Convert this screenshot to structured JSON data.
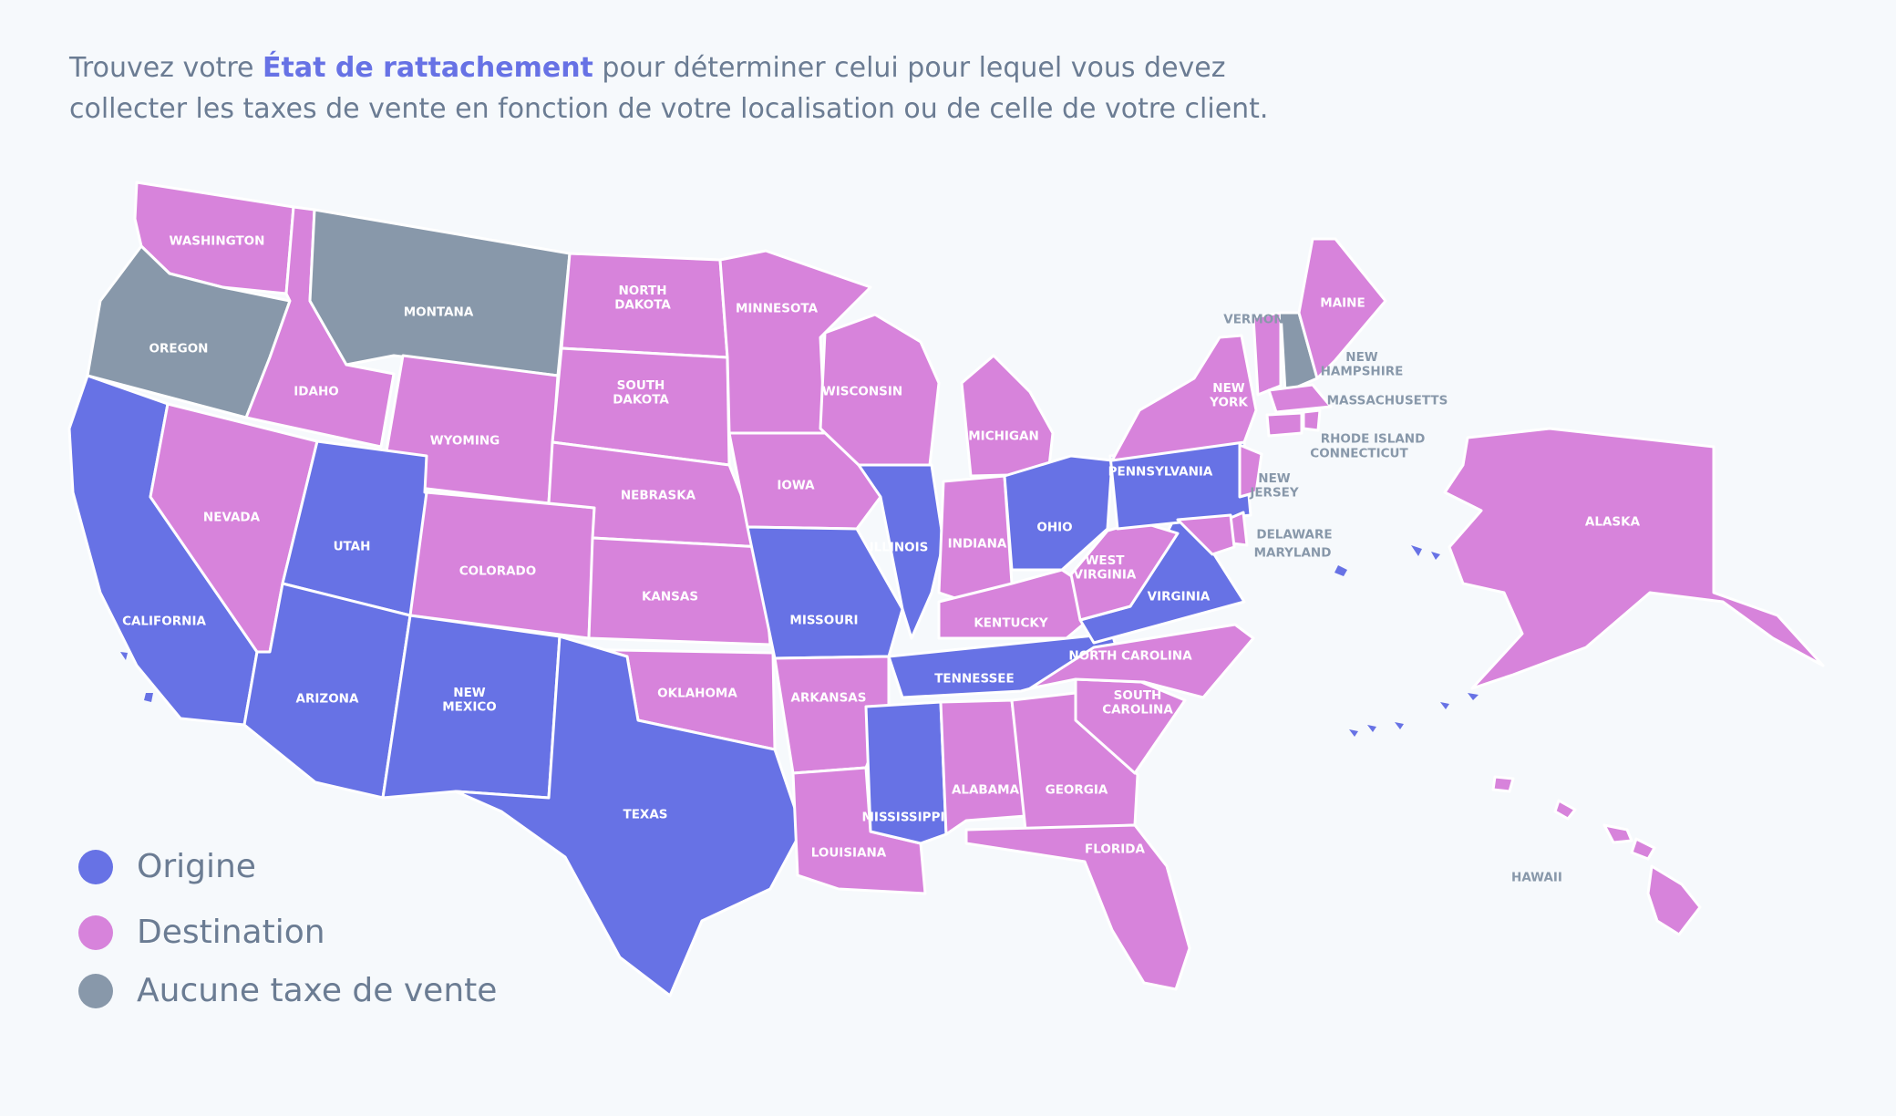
{
  "intro": {
    "before": "Trouvez votre ",
    "highlight": "État de rattachement",
    "after": " pour déterminer celui pour lequel vous devez collecter les taxes de vente en fonction de votre localisation ou de celle de votre client."
  },
  "colors": {
    "origin": "#6772e5",
    "destination": "#d783db",
    "none": "#8898aa",
    "border": "#ffffff",
    "label_on_state": "#ffffff",
    "label_outside": "#8898aa",
    "background": "#f6f9fc"
  },
  "legend": [
    {
      "key": "origin",
      "label": "Origine"
    },
    {
      "key": "destination",
      "label": "Destination"
    },
    {
      "key": "none",
      "label": "Aucune taxe de vente"
    }
  ],
  "states": [
    {
      "id": "washington",
      "label": "WASHINGTON",
      "category": "destination"
    },
    {
      "id": "oregon",
      "label": "OREGON",
      "category": "none"
    },
    {
      "id": "california",
      "label": "CALIFORNIA",
      "category": "origin"
    },
    {
      "id": "idaho",
      "label": "IDAHO",
      "category": "destination"
    },
    {
      "id": "nevada",
      "label": "NEVADA",
      "category": "destination"
    },
    {
      "id": "montana",
      "label": "MONTANA",
      "category": "none"
    },
    {
      "id": "wyoming",
      "label": "WYOMING",
      "category": "destination"
    },
    {
      "id": "utah",
      "label": "UTAH",
      "category": "origin"
    },
    {
      "id": "arizona",
      "label": "ARIZONA",
      "category": "origin"
    },
    {
      "id": "colorado",
      "label": "COLORADO",
      "category": "destination"
    },
    {
      "id": "new-mexico",
      "label": "NEW MEXICO",
      "category": "origin"
    },
    {
      "id": "north-dakota",
      "label": "NORTH DAKOTA",
      "category": "destination"
    },
    {
      "id": "south-dakota",
      "label": "SOUTH DAKOTA",
      "category": "destination"
    },
    {
      "id": "nebraska",
      "label": "NEBRASKA",
      "category": "destination"
    },
    {
      "id": "kansas",
      "label": "KANSAS",
      "category": "destination"
    },
    {
      "id": "oklahoma",
      "label": "OKLAHOMA",
      "category": "destination"
    },
    {
      "id": "texas",
      "label": "TEXAS",
      "category": "origin"
    },
    {
      "id": "minnesota",
      "label": "MINNESOTA",
      "category": "destination"
    },
    {
      "id": "iowa",
      "label": "IOWA",
      "category": "destination"
    },
    {
      "id": "missouri",
      "label": "MISSOURI",
      "category": "origin"
    },
    {
      "id": "arkansas",
      "label": "ARKANSAS",
      "category": "destination"
    },
    {
      "id": "louisiana",
      "label": "LOUISIANA",
      "category": "destination"
    },
    {
      "id": "wisconsin",
      "label": "WISCONSIN",
      "category": "destination"
    },
    {
      "id": "illinois",
      "label": "ILLINOIS",
      "category": "origin"
    },
    {
      "id": "michigan",
      "label": "MICHIGAN",
      "category": "destination"
    },
    {
      "id": "indiana",
      "label": "INDIANA",
      "category": "destination"
    },
    {
      "id": "ohio",
      "label": "OHIO",
      "category": "origin"
    },
    {
      "id": "kentucky",
      "label": "KENTUCKY",
      "category": "destination"
    },
    {
      "id": "tennessee",
      "label": "TENNESSEE",
      "category": "origin"
    },
    {
      "id": "mississippi",
      "label": "MISSISSIPPI",
      "category": "origin"
    },
    {
      "id": "alabama",
      "label": "ALABAMA",
      "category": "destination"
    },
    {
      "id": "georgia",
      "label": "GEORGIA",
      "category": "destination"
    },
    {
      "id": "florida",
      "label": "FLORIDA",
      "category": "destination"
    },
    {
      "id": "south-carolina",
      "label": "SOUTH CAROLINA",
      "category": "destination"
    },
    {
      "id": "north-carolina",
      "label": "NORTH CAROLINA",
      "category": "destination"
    },
    {
      "id": "virginia",
      "label": "VIRGINIA",
      "category": "origin"
    },
    {
      "id": "west-virginia",
      "label": "WEST VIRGINIA",
      "category": "destination"
    },
    {
      "id": "pennsylvania",
      "label": "PENNSYLVANIA",
      "category": "origin"
    },
    {
      "id": "new-york",
      "label": "NEW YORK",
      "category": "destination"
    },
    {
      "id": "vermont",
      "label": "VERMONT",
      "category": "destination"
    },
    {
      "id": "new-hampshire",
      "label": "NEW HAMPSHIRE",
      "category": "none"
    },
    {
      "id": "maine",
      "label": "MAINE",
      "category": "destination"
    },
    {
      "id": "massachusetts",
      "label": "MASSACHUSETTS",
      "category": "destination"
    },
    {
      "id": "rhode-island",
      "label": "RHODE ISLAND",
      "category": "destination"
    },
    {
      "id": "connecticut",
      "label": "CONNECTICUT",
      "category": "destination"
    },
    {
      "id": "new-jersey",
      "label": "NEW JERSEY",
      "category": "destination"
    },
    {
      "id": "delaware",
      "label": "DELAWARE",
      "category": "destination"
    },
    {
      "id": "maryland",
      "label": "MARYLAND",
      "category": "destination"
    },
    {
      "id": "alaska",
      "label": "ALASKA",
      "category": "destination"
    },
    {
      "id": "hawaii",
      "label": "HAWAII",
      "category": "destination"
    }
  ]
}
